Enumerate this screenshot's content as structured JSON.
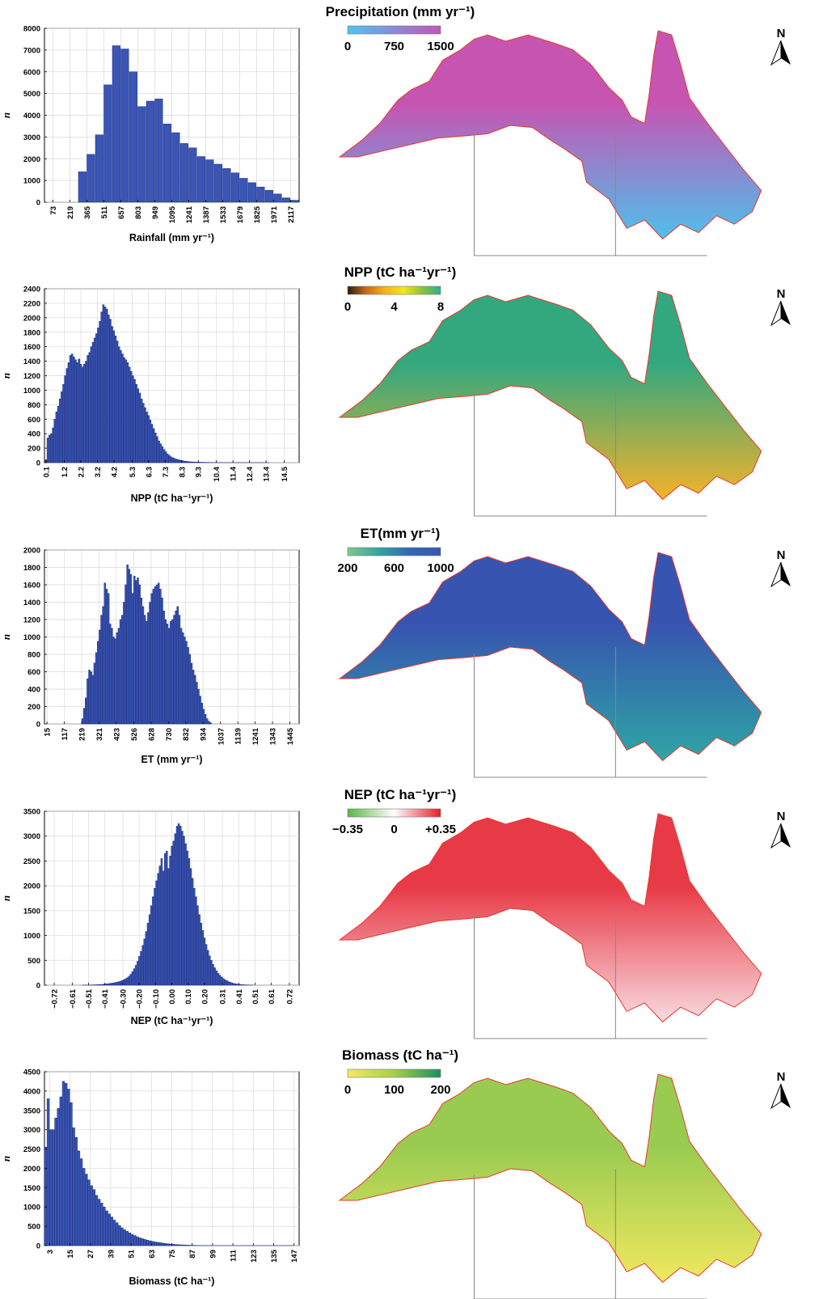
{
  "chart_data": [
    {
      "type": "bar",
      "xlabel": "Rainfall (mm yr⁻¹)",
      "ylabel": "n",
      "ylim": [
        0,
        8000
      ],
      "yticks": [
        0,
        1000,
        2000,
        3000,
        4000,
        5000,
        6000,
        7000,
        8000
      ],
      "xticks": [
        "73",
        "219",
        "365",
        "511",
        "657",
        "803",
        "949",
        "1095",
        "1241",
        "1387",
        "1533",
        "1679",
        "1825",
        "1971",
        "2117"
      ],
      "xrange": [
        0,
        2190
      ],
      "bar_start": 292,
      "bar_width": 73,
      "values": [
        1400,
        2200,
        3100,
        5400,
        7200,
        7050,
        6000,
        4400,
        4650,
        4750,
        3600,
        3200,
        2700,
        2500,
        2100,
        1950,
        1750,
        1550,
        1350,
        1100,
        900,
        700,
        550,
        380,
        200,
        90
      ],
      "map_title": "Precipitation (mm yr⁻¹)",
      "colorbar": {
        "ticks": [
          "0",
          "750",
          "1500"
        ],
        "colors": [
          "#4fc6ee",
          "#8a8ad6",
          "#c455b6"
        ]
      },
      "grid": true
    },
    {
      "type": "bar",
      "xlabel": "NPP (tC ha⁻¹yr⁻¹)",
      "ylabel": "n",
      "ylim": [
        0,
        2400
      ],
      "yticks": [
        0,
        200,
        400,
        600,
        800,
        1000,
        1200,
        1400,
        1600,
        1800,
        2000,
        2200,
        2400
      ],
      "xticks": [
        "0.1",
        "1.2",
        "2.2",
        "3.2",
        "4.2",
        "5.3",
        "6.3",
        "7.3",
        "8.3",
        "9.3",
        "10.4",
        "11.4",
        "12.4",
        "13.4",
        "14.5"
      ],
      "xrange": [
        0,
        15.4
      ],
      "bar_start": 0.05,
      "bar_width": 0.105,
      "values": [
        40,
        340,
        380,
        400,
        480,
        600,
        700,
        780,
        880,
        980,
        1080,
        1200,
        1300,
        1380,
        1480,
        1500,
        1460,
        1420,
        1380,
        1430,
        1360,
        1320,
        1360,
        1400,
        1480,
        1520,
        1600,
        1660,
        1720,
        1780,
        1860,
        1950,
        2080,
        2180,
        2150,
        2120,
        2040,
        1980,
        1880,
        1820,
        1750,
        1680,
        1600,
        1550,
        1500,
        1450,
        1420,
        1380,
        1320,
        1260,
        1200,
        1150,
        1080,
        1020,
        960,
        880,
        820,
        760,
        700,
        650,
        590,
        530,
        470,
        410,
        360,
        300,
        260,
        220,
        180,
        150,
        120,
        100,
        80,
        68,
        58,
        50,
        42,
        36,
        30,
        25,
        21,
        18,
        15,
        13,
        11,
        10,
        9,
        8,
        7,
        6,
        5,
        5,
        4,
        4,
        3,
        3,
        3,
        2,
        2,
        2,
        2,
        2,
        1,
        1,
        1,
        1,
        1,
        1,
        1,
        1,
        1,
        1,
        1,
        1,
        1,
        1,
        1,
        1,
        1,
        1,
        1,
        1,
        1,
        1,
        1,
        1,
        1,
        1,
        1
      ],
      "map_title": "NPP (tC ha⁻¹yr⁻¹)",
      "colorbar": {
        "ticks": [
          "0",
          "4",
          "8"
        ],
        "colors": [
          "#2a1d12",
          "#c86a1a",
          "#f6b21a",
          "#f3e61e",
          "#87c540",
          "#2fae8c"
        ]
      },
      "grid": true
    },
    {
      "type": "bar",
      "xlabel": "ET (mm yr⁻¹)",
      "ylabel": "n",
      "ylim": [
        0,
        2000
      ],
      "yticks": [
        0,
        200,
        400,
        600,
        800,
        1000,
        1200,
        1400,
        1600,
        1800,
        2000
      ],
      "xticks": [
        "15",
        "117",
        "219",
        "321",
        "423",
        "526",
        "628",
        "730",
        "832",
        "934",
        "1037",
        "1139",
        "1241",
        "1343",
        "1445"
      ],
      "xrange": [
        0,
        1500
      ],
      "bar_start": 219,
      "bar_width": 10.2,
      "values": [
        60,
        180,
        300,
        520,
        620,
        600,
        560,
        700,
        820,
        950,
        1080,
        1250,
        1350,
        1620,
        1550,
        1500,
        1150,
        1100,
        1000,
        980,
        1050,
        1100,
        1200,
        1250,
        1400,
        1600,
        1830,
        1780,
        1720,
        1500,
        1700,
        1650,
        1680,
        1600,
        1450,
        1350,
        1250,
        1180,
        1280,
        1400,
        1500,
        1550,
        1580,
        1600,
        1620,
        1550,
        1450,
        1300,
        1200,
        1150,
        1100,
        1180,
        1200,
        1250,
        1300,
        1350,
        1250,
        1100,
        1050,
        1000,
        950,
        880,
        800,
        700,
        620,
        560,
        480,
        400,
        320,
        240,
        170,
        110,
        60,
        30,
        15
      ],
      "map_title": "ET(mm yr⁻¹)",
      "colorbar": {
        "ticks": [
          "200",
          "600",
          "1000"
        ],
        "colors": [
          "#7fc98e",
          "#2fa7a2",
          "#3466b6",
          "#3757b2"
        ]
      },
      "grid": true
    },
    {
      "type": "bar",
      "xlabel": "NEP (tC ha⁻¹yr⁻¹)",
      "ylabel": "n",
      "ylim": [
        0,
        3500
      ],
      "yticks": [
        0,
        500,
        1000,
        1500,
        2000,
        2500,
        3000,
        3500
      ],
      "xticks": [
        "−0.72",
        "−0.61",
        "−0.51",
        "−0.41",
        "−0.30",
        "−0.20",
        "−0.10",
        "0.00",
        "0.10",
        "0.20",
        "0.31",
        "0.41",
        "0.51",
        "0.61",
        "0.72"
      ],
      "xrange": [
        -0.78,
        0.78
      ],
      "bar_start": -0.55,
      "bar_width": 0.0105,
      "values": [
        2,
        2,
        3,
        3,
        4,
        5,
        6,
        7,
        9,
        11,
        13,
        15,
        18,
        21,
        25,
        30,
        35,
        40,
        46,
        52,
        60,
        70,
        80,
        95,
        110,
        130,
        150,
        180,
        220,
        270,
        330,
        400,
        480,
        580,
        680,
        800,
        930,
        1080,
        1250,
        1420,
        1600,
        1780,
        1950,
        2100,
        2250,
        2400,
        2550,
        2300,
        2650,
        2700,
        2350,
        2600,
        2800,
        2900,
        3050,
        3200,
        3250,
        3200,
        3100,
        3000,
        2850,
        2700,
        2550,
        2350,
        2150,
        1950,
        1780,
        1600,
        1420,
        1250,
        1100,
        950,
        820,
        700,
        590,
        500,
        420,
        350,
        290,
        240,
        200,
        165,
        135,
        110,
        90,
        72,
        58,
        46,
        36,
        28,
        22,
        17,
        13,
        10,
        8,
        6,
        5,
        4,
        3,
        2
      ],
      "map_title": "NEP (tC ha⁻¹yr⁻¹)",
      "colorbar": {
        "ticks": [
          "−0.35",
          "0",
          "+0.35"
        ],
        "colors": [
          "#58b847",
          "#ffffff",
          "#e41e26"
        ]
      },
      "grid": true
    },
    {
      "type": "bar",
      "xlabel": "Biomass (tC ha⁻¹)",
      "ylabel": "n",
      "ylim": [
        0,
        4500
      ],
      "yticks": [
        0,
        500,
        1000,
        1500,
        2000,
        2500,
        3000,
        3500,
        4000,
        4500
      ],
      "xticks": [
        "3",
        "15",
        "27",
        "39",
        "51",
        "63",
        "75",
        "87",
        "99",
        "111",
        "123",
        "135",
        "147"
      ],
      "xrange": [
        0,
        150
      ],
      "bar_start": 0,
      "bar_width": 1.5,
      "values": [
        2550,
        3800,
        3000,
        3000,
        3300,
        3550,
        3850,
        4250,
        4200,
        4050,
        3700,
        3050,
        2800,
        2450,
        2250,
        2000,
        1850,
        1700,
        1550,
        1450,
        1300,
        1200,
        1100,
        1000,
        900,
        820,
        740,
        660,
        590,
        520,
        460,
        410,
        370,
        330,
        290,
        260,
        230,
        200,
        180,
        160,
        140,
        125,
        110,
        95,
        85,
        75,
        65,
        55,
        48,
        42,
        36,
        30,
        26,
        22,
        18,
        15,
        12,
        10,
        8,
        6,
        5,
        4,
        3,
        3,
        2,
        2,
        2,
        1,
        1,
        1,
        1,
        1,
        1,
        1,
        1,
        1,
        1,
        1,
        1,
        1,
        1,
        1,
        1,
        1,
        1,
        1,
        1,
        1,
        1,
        1,
        1,
        1,
        1,
        1,
        1,
        1,
        1,
        1
      ],
      "map_title": "Biomass (tC ha⁻¹)",
      "colorbar": {
        "ticks": [
          "0",
          "100",
          "200"
        ],
        "colors": [
          "#f3ea5b",
          "#a7cf4f",
          "#1b8f5e"
        ]
      },
      "grid": true
    }
  ],
  "north_arrow_label": "N",
  "map_style": {
    "outline_color": "#e63a2e",
    "frame_color": "#888888"
  },
  "map_fills": [
    {
      "north": "#c655b2",
      "south": "#4ec0ec"
    },
    {
      "north": "#33a87e",
      "south": "#f4b22a"
    },
    {
      "north": "#3755b0",
      "south": "#2ea6a4"
    },
    {
      "north": "#e83a46",
      "south": "#f8dbe0"
    },
    {
      "north": "#9acb51",
      "south": "#f1e85e"
    }
  ]
}
